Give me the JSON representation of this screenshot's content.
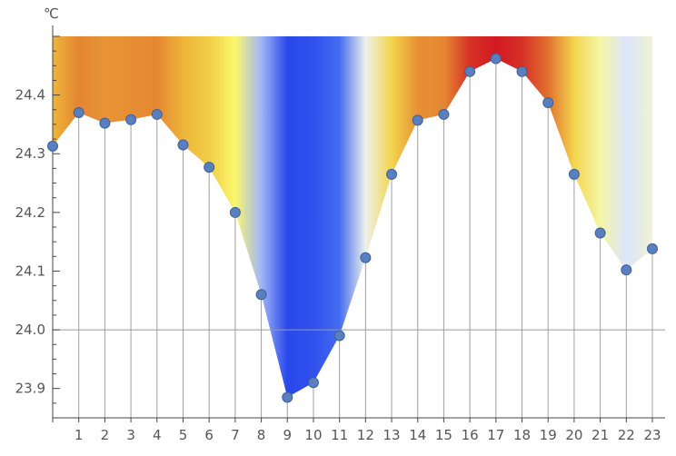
{
  "chart_data": {
    "type": "area",
    "title": "",
    "xlabel": "",
    "ylabel": "℃",
    "x": [
      0,
      1,
      2,
      3,
      4,
      5,
      6,
      7,
      8,
      9,
      10,
      11,
      12,
      13,
      14,
      15,
      16,
      17,
      18,
      19,
      20,
      21,
      22,
      23
    ],
    "series": [
      {
        "values": [
          24.313,
          24.37,
          24.352,
          24.358,
          24.367,
          24.315,
          24.277,
          24.2,
          24.06,
          23.885,
          23.91,
          23.99,
          24.123,
          24.265,
          24.357,
          24.367,
          24.44,
          24.462,
          24.44,
          24.387,
          24.265,
          24.165,
          24.102,
          24.138
        ]
      }
    ],
    "x_ticks": [
      "1",
      "2",
      "3",
      "4",
      "5",
      "6",
      "7",
      "8",
      "9",
      "10",
      "11",
      "12",
      "13",
      "14",
      "15",
      "16",
      "17",
      "18",
      "19",
      "20",
      "21",
      "22",
      "23"
    ],
    "y_ticks": [
      "23.9",
      "24.0",
      "24.1",
      "24.2",
      "24.3",
      "24.4"
    ],
    "xlim": [
      0,
      23
    ],
    "ylim": [
      23.85,
      24.5
    ],
    "reference_line_y": 24.0,
    "fill": "colored area from the data line up to the top of the plot, coloured by temperature (blue = low, white, yellow, orange, red = high)",
    "colors": {
      "point": "#5a7fbf",
      "point_stroke": "#3d5f9a",
      "drop_line": "#a0a0a0",
      "axis": "#444444",
      "reference_line": "#9a9a9a"
    },
    "grid": false,
    "legend": "none"
  }
}
